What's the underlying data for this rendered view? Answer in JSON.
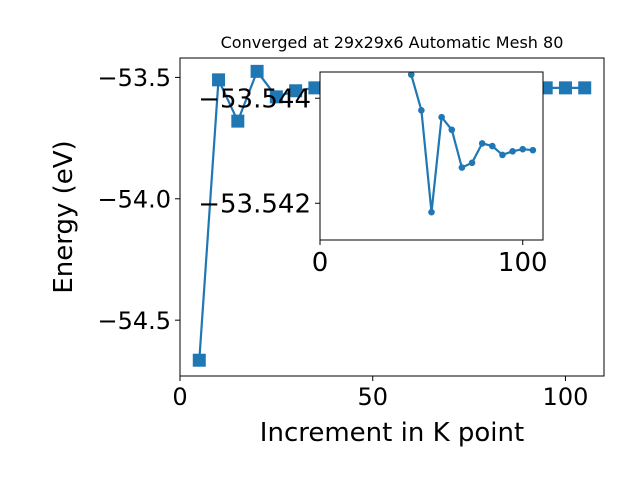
{
  "chart_data": [
    {
      "type": "line",
      "title": "Converged at 29x29x6 Automatic Mesh 80",
      "xlabel": "Increment in K point",
      "ylabel": "Energy (eV)",
      "xlim": [
        0,
        110
      ],
      "ylim": [
        -54.73,
        -53.42
      ],
      "xticks": [
        0,
        50,
        100
      ],
      "xtick_labels": [
        "0",
        "50",
        "100"
      ],
      "yticks": [
        -54.5,
        -54.0,
        -53.5
      ],
      "ytick_labels": [
        "−54.5",
        "−54.0",
        "−53.5"
      ],
      "marker": "square",
      "color": "#1f77b4",
      "grid": false,
      "series": [
        {
          "x": [
            5,
            10,
            15,
            20,
            25,
            30,
            35,
            40,
            45,
            50,
            55,
            60,
            65,
            70,
            75,
            80,
            85,
            90,
            95,
            100,
            105
          ],
          "values": [
            -54.665,
            -53.51,
            -53.68,
            -53.475,
            -53.58,
            -53.555,
            -53.543,
            -53.543,
            -53.543,
            -53.543,
            -53.543,
            -53.543,
            -53.543,
            -53.543,
            -53.543,
            -53.543,
            -53.543,
            -53.543,
            -53.543,
            -53.543,
            -53.543
          ]
        }
      ]
    },
    {
      "type": "line",
      "title": "",
      "xlim": [
        0,
        110
      ],
      "ylim": [
        -53.5413,
        -53.5445
      ],
      "xticks": [
        0,
        100
      ],
      "xtick_labels": [
        "0",
        "100"
      ],
      "yticks": [
        -53.542,
        -53.544
      ],
      "ytick_labels": [
        "−53.542",
        "−53.544"
      ],
      "marker": "circle",
      "color": "#1f77b4",
      "grid": false,
      "series": [
        {
          "x": [
            45,
            50,
            55,
            60,
            65,
            70,
            75,
            80,
            85,
            90,
            95,
            100,
            105
          ],
          "values": [
            -53.54445,
            -53.54377,
            -53.54183,
            -53.54364,
            -53.5434,
            -53.54268,
            -53.54277,
            -53.54314,
            -53.54309,
            -53.54292,
            -53.54299,
            -53.54303,
            -53.54301
          ]
        }
      ]
    }
  ]
}
